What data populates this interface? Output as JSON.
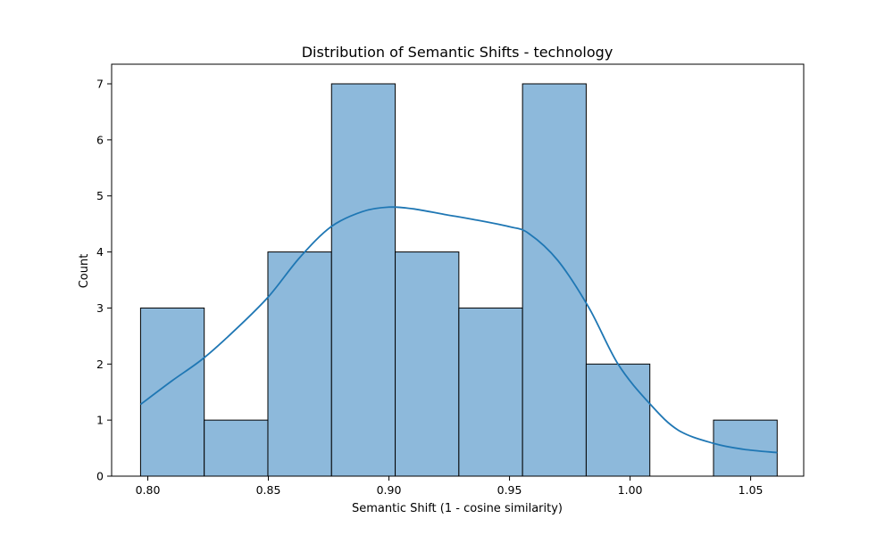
{
  "chart_data": {
    "type": "bar",
    "subtype": "histogram-with-kde",
    "title": "Distribution of Semantic Shifts - technology",
    "xlabel": "Semantic Shift (1 - cosine similarity)",
    "ylabel": "Count",
    "xlim": [
      0.785,
      1.072
    ],
    "ylim": [
      0,
      7.35
    ],
    "xticks": [
      0.8,
      0.85,
      0.9,
      0.95,
      1.0,
      1.05
    ],
    "xtick_labels": [
      "0.80",
      "0.85",
      "0.90",
      "0.95",
      "1.00",
      "1.05"
    ],
    "yticks": [
      0,
      1,
      2,
      3,
      4,
      5,
      6,
      7
    ],
    "ytick_labels": [
      "0",
      "1",
      "2",
      "3",
      "4",
      "5",
      "6",
      "7"
    ],
    "bins": [
      {
        "x0": 0.797,
        "x1": 0.8234,
        "count": 3
      },
      {
        "x0": 0.8234,
        "x1": 0.8498,
        "count": 1
      },
      {
        "x0": 0.8498,
        "x1": 0.8762,
        "count": 4
      },
      {
        "x0": 0.8762,
        "x1": 0.9026,
        "count": 7
      },
      {
        "x0": 0.9026,
        "x1": 0.929,
        "count": 4
      },
      {
        "x0": 0.929,
        "x1": 0.9554,
        "count": 3
      },
      {
        "x0": 0.9554,
        "x1": 0.9818,
        "count": 7
      },
      {
        "x0": 0.9818,
        "x1": 1.0082,
        "count": 2
      },
      {
        "x0": 1.0082,
        "x1": 1.0346,
        "count": 0
      },
      {
        "x0": 1.0346,
        "x1": 1.061,
        "count": 1
      }
    ],
    "kde": {
      "x": [
        0.797,
        0.81,
        0.823,
        0.836,
        0.85,
        0.863,
        0.876,
        0.889,
        0.9,
        0.91,
        0.923,
        0.935,
        0.95,
        0.958,
        0.97,
        0.983,
        0.995,
        1.008,
        1.02,
        1.035,
        1.047,
        1.061
      ],
      "y": [
        1.28,
        1.7,
        2.1,
        2.6,
        3.2,
        3.9,
        4.45,
        4.72,
        4.8,
        4.77,
        4.67,
        4.58,
        4.45,
        4.33,
        3.85,
        3.0,
        2.0,
        1.3,
        0.82,
        0.58,
        0.48,
        0.42
      ]
    },
    "colors": {
      "bar_fill": "#8db9db",
      "bar_edge": "#000000",
      "kde_line": "#1f77b4"
    },
    "grid": false,
    "legend": "none"
  }
}
